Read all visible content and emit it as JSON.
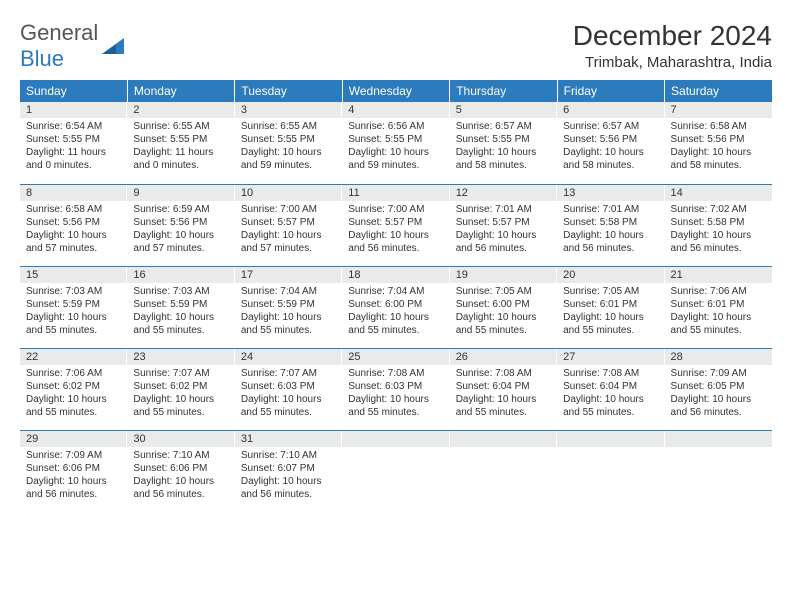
{
  "logo": {
    "text1": "General",
    "text2": "Blue"
  },
  "header": {
    "month": "December 2024",
    "location": "Trimbak, Maharashtra, India"
  },
  "weekdays": [
    "Sunday",
    "Monday",
    "Tuesday",
    "Wednesday",
    "Thursday",
    "Friday",
    "Saturday"
  ],
  "colors": {
    "accent": "#2b7bbd",
    "header_bg": "#2b7bbd",
    "daynum_bg": "#e9eaea",
    "text": "#333333",
    "bg": "#ffffff"
  },
  "days": [
    {
      "n": "1",
      "sr": "6:54 AM",
      "ss": "5:55 PM",
      "dl": "11 hours and 0 minutes."
    },
    {
      "n": "2",
      "sr": "6:55 AM",
      "ss": "5:55 PM",
      "dl": "11 hours and 0 minutes."
    },
    {
      "n": "3",
      "sr": "6:55 AM",
      "ss": "5:55 PM",
      "dl": "10 hours and 59 minutes."
    },
    {
      "n": "4",
      "sr": "6:56 AM",
      "ss": "5:55 PM",
      "dl": "10 hours and 59 minutes."
    },
    {
      "n": "5",
      "sr": "6:57 AM",
      "ss": "5:55 PM",
      "dl": "10 hours and 58 minutes."
    },
    {
      "n": "6",
      "sr": "6:57 AM",
      "ss": "5:56 PM",
      "dl": "10 hours and 58 minutes."
    },
    {
      "n": "7",
      "sr": "6:58 AM",
      "ss": "5:56 PM",
      "dl": "10 hours and 58 minutes."
    },
    {
      "n": "8",
      "sr": "6:58 AM",
      "ss": "5:56 PM",
      "dl": "10 hours and 57 minutes."
    },
    {
      "n": "9",
      "sr": "6:59 AM",
      "ss": "5:56 PM",
      "dl": "10 hours and 57 minutes."
    },
    {
      "n": "10",
      "sr": "7:00 AM",
      "ss": "5:57 PM",
      "dl": "10 hours and 57 minutes."
    },
    {
      "n": "11",
      "sr": "7:00 AM",
      "ss": "5:57 PM",
      "dl": "10 hours and 56 minutes."
    },
    {
      "n": "12",
      "sr": "7:01 AM",
      "ss": "5:57 PM",
      "dl": "10 hours and 56 minutes."
    },
    {
      "n": "13",
      "sr": "7:01 AM",
      "ss": "5:58 PM",
      "dl": "10 hours and 56 minutes."
    },
    {
      "n": "14",
      "sr": "7:02 AM",
      "ss": "5:58 PM",
      "dl": "10 hours and 56 minutes."
    },
    {
      "n": "15",
      "sr": "7:03 AM",
      "ss": "5:59 PM",
      "dl": "10 hours and 55 minutes."
    },
    {
      "n": "16",
      "sr": "7:03 AM",
      "ss": "5:59 PM",
      "dl": "10 hours and 55 minutes."
    },
    {
      "n": "17",
      "sr": "7:04 AM",
      "ss": "5:59 PM",
      "dl": "10 hours and 55 minutes."
    },
    {
      "n": "18",
      "sr": "7:04 AM",
      "ss": "6:00 PM",
      "dl": "10 hours and 55 minutes."
    },
    {
      "n": "19",
      "sr": "7:05 AM",
      "ss": "6:00 PM",
      "dl": "10 hours and 55 minutes."
    },
    {
      "n": "20",
      "sr": "7:05 AM",
      "ss": "6:01 PM",
      "dl": "10 hours and 55 minutes."
    },
    {
      "n": "21",
      "sr": "7:06 AM",
      "ss": "6:01 PM",
      "dl": "10 hours and 55 minutes."
    },
    {
      "n": "22",
      "sr": "7:06 AM",
      "ss": "6:02 PM",
      "dl": "10 hours and 55 minutes."
    },
    {
      "n": "23",
      "sr": "7:07 AM",
      "ss": "6:02 PM",
      "dl": "10 hours and 55 minutes."
    },
    {
      "n": "24",
      "sr": "7:07 AM",
      "ss": "6:03 PM",
      "dl": "10 hours and 55 minutes."
    },
    {
      "n": "25",
      "sr": "7:08 AM",
      "ss": "6:03 PM",
      "dl": "10 hours and 55 minutes."
    },
    {
      "n": "26",
      "sr": "7:08 AM",
      "ss": "6:04 PM",
      "dl": "10 hours and 55 minutes."
    },
    {
      "n": "27",
      "sr": "7:08 AM",
      "ss": "6:04 PM",
      "dl": "10 hours and 55 minutes."
    },
    {
      "n": "28",
      "sr": "7:09 AM",
      "ss": "6:05 PM",
      "dl": "10 hours and 56 minutes."
    },
    {
      "n": "29",
      "sr": "7:09 AM",
      "ss": "6:06 PM",
      "dl": "10 hours and 56 minutes."
    },
    {
      "n": "30",
      "sr": "7:10 AM",
      "ss": "6:06 PM",
      "dl": "10 hours and 56 minutes."
    },
    {
      "n": "31",
      "sr": "7:10 AM",
      "ss": "6:07 PM",
      "dl": "10 hours and 56 minutes."
    }
  ],
  "labels": {
    "sunrise": "Sunrise:",
    "sunset": "Sunset:",
    "daylight": "Daylight:"
  }
}
